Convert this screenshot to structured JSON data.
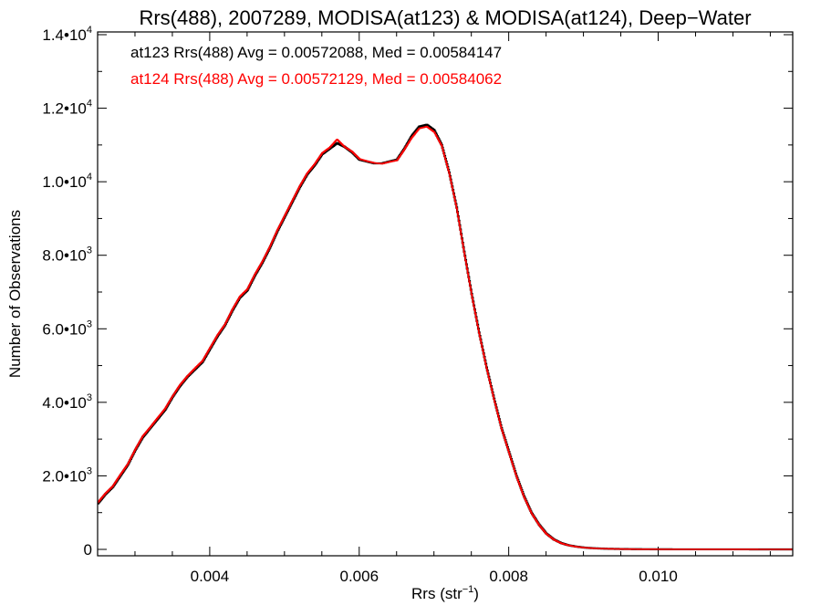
{
  "chart_data": {
    "type": "line",
    "title": "Rrs(488), 2007289, MODISA(at123) & MODISA(at124), Deep−Water",
    "xlabel_base": "Rrs (str",
    "xlabel_sup": "−1",
    "xlabel_end": ")",
    "ylabel": "Number of Observations",
    "xlim": [
      0.0025,
      0.0118
    ],
    "ylim": [
      0,
      14000
    ],
    "xticks": [
      {
        "value": 0.004,
        "label": "0.004"
      },
      {
        "value": 0.006,
        "label": "0.006"
      },
      {
        "value": 0.008,
        "label": "0.008"
      },
      {
        "value": 0.01,
        "label": "0.010"
      }
    ],
    "yticks": [
      {
        "value": 0,
        "mant": "0",
        "exp": ""
      },
      {
        "value": 2000,
        "mant": "2.0•10",
        "exp": "3"
      },
      {
        "value": 4000,
        "mant": "4.0•10",
        "exp": "3"
      },
      {
        "value": 6000,
        "mant": "6.0•10",
        "exp": "3"
      },
      {
        "value": 8000,
        "mant": "8.0•10",
        "exp": "3"
      },
      {
        "value": 10000,
        "mant": "1.0•10",
        "exp": "4"
      },
      {
        "value": 12000,
        "mant": "1.2•10",
        "exp": "4"
      },
      {
        "value": 14000,
        "mant": "1.4•10",
        "exp": "4"
      }
    ],
    "annotations": [
      {
        "text": "at123 Rrs(488) Avg = 0.00572088, Med = 0.00584147",
        "color": "#000000"
      },
      {
        "text": "at124 Rrs(488) Avg = 0.00572129, Med = 0.00584062",
        "color": "#ff0000"
      }
    ],
    "series": [
      {
        "color": "#000000",
        "x": [
          0.0025,
          0.0026,
          0.0027,
          0.0028,
          0.0029,
          0.003,
          0.0031,
          0.0032,
          0.0033,
          0.0034,
          0.0035,
          0.0036,
          0.0037,
          0.0038,
          0.0039,
          0.004,
          0.0041,
          0.0042,
          0.0043,
          0.0044,
          0.0045,
          0.0046,
          0.0047,
          0.0048,
          0.0049,
          0.005,
          0.0051,
          0.0052,
          0.0053,
          0.0054,
          0.0055,
          0.0056,
          0.0057,
          0.0058,
          0.0059,
          0.006,
          0.0061,
          0.0062,
          0.0063,
          0.0064,
          0.0065,
          0.0066,
          0.0067,
          0.0068,
          0.0069,
          0.007,
          0.0071,
          0.0072,
          0.0073,
          0.0074,
          0.0075,
          0.0076,
          0.0077,
          0.0078,
          0.0079,
          0.008,
          0.0081,
          0.0082,
          0.0083,
          0.0084,
          0.0085,
          0.0086,
          0.0087,
          0.0088,
          0.0089,
          0.009,
          0.0091,
          0.0092,
          0.0093,
          0.0094,
          0.0095,
          0.0096,
          0.0097,
          0.0098,
          0.0099,
          0.01,
          0.0102,
          0.0104,
          0.0106,
          0.0108,
          0.011,
          0.0112,
          0.0114,
          0.0116,
          0.0118
        ],
        "y": [
          1250,
          1500,
          1700,
          2000,
          2300,
          2700,
          3050,
          3300,
          3550,
          3800,
          4150,
          4450,
          4700,
          4900,
          5100,
          5450,
          5800,
          6100,
          6500,
          6850,
          7050,
          7450,
          7800,
          8200,
          8650,
          9050,
          9450,
          9850,
          10200,
          10450,
          10750,
          10900,
          11050,
          10950,
          10800,
          10600,
          10550,
          10500,
          10500,
          10550,
          10600,
          10900,
          11250,
          11500,
          11550,
          11400,
          11000,
          10250,
          9300,
          8100,
          6950,
          5900,
          4950,
          4100,
          3300,
          2650,
          2000,
          1450,
          1000,
          680,
          430,
          270,
          170,
          110,
          75,
          50,
          35,
          25,
          18,
          14,
          10,
          8,
          6,
          5,
          4,
          3,
          2,
          2,
          1,
          1,
          1,
          1,
          0,
          0,
          0
        ]
      },
      {
        "color": "#ff0000",
        "x": [
          0.0025,
          0.0026,
          0.0027,
          0.0028,
          0.0029,
          0.003,
          0.0031,
          0.0032,
          0.0033,
          0.0034,
          0.0035,
          0.0036,
          0.0037,
          0.0038,
          0.0039,
          0.004,
          0.0041,
          0.0042,
          0.0043,
          0.0044,
          0.0045,
          0.0046,
          0.0047,
          0.0048,
          0.0049,
          0.005,
          0.0051,
          0.0052,
          0.0053,
          0.0054,
          0.0055,
          0.0056,
          0.0057,
          0.0058,
          0.0059,
          0.006,
          0.0061,
          0.0062,
          0.0063,
          0.0064,
          0.0065,
          0.0066,
          0.0067,
          0.0068,
          0.0069,
          0.007,
          0.0071,
          0.0072,
          0.0073,
          0.0074,
          0.0075,
          0.0076,
          0.0077,
          0.0078,
          0.0079,
          0.008,
          0.0081,
          0.0082,
          0.0083,
          0.0084,
          0.0085,
          0.0086,
          0.0087,
          0.0088,
          0.0089,
          0.009,
          0.0091,
          0.0092,
          0.0093,
          0.0094,
          0.0095,
          0.0096,
          0.0097,
          0.0098,
          0.0099,
          0.01,
          0.0102,
          0.0104,
          0.0106,
          0.0108,
          0.011,
          0.0112,
          0.0114,
          0.0116,
          0.0118
        ],
        "y": [
          1280,
          1520,
          1720,
          2030,
          2320,
          2720,
          3080,
          3320,
          3580,
          3830,
          4170,
          4480,
          4720,
          4930,
          5130,
          5480,
          5830,
          6120,
          6530,
          6880,
          7080,
          7480,
          7830,
          8230,
          8680,
          9080,
          9480,
          9880,
          10230,
          10480,
          10780,
          10930,
          11150,
          10950,
          10820,
          10620,
          10560,
          10510,
          10490,
          10540,
          10580,
          10880,
          11200,
          11450,
          11500,
          11350,
          10980,
          10230,
          9280,
          8080,
          6930,
          5880,
          4930,
          4080,
          3280,
          2630,
          1980,
          1430,
          990,
          670,
          420,
          265,
          165,
          108,
          72,
          48,
          34,
          24,
          17,
          13,
          10,
          8,
          6,
          5,
          4,
          3,
          2,
          2,
          1,
          1,
          1,
          1,
          0,
          0,
          0
        ]
      }
    ]
  }
}
